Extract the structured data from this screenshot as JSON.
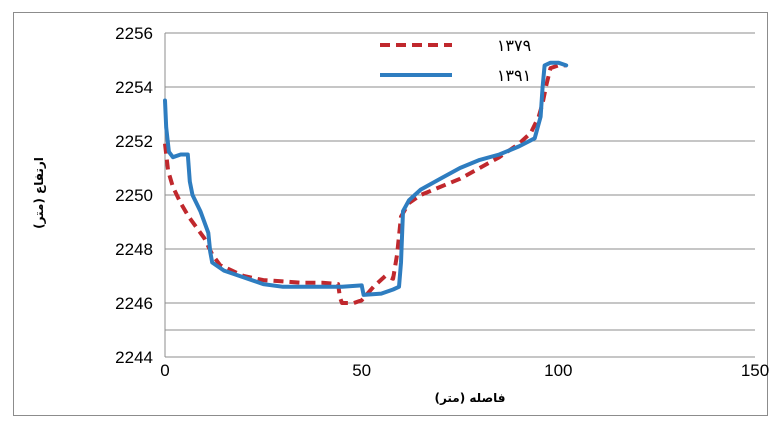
{
  "chart_data": {
    "type": "line",
    "title": "",
    "xlabel": "فاصله (متر)",
    "ylabel": "ارتفاع (متر)",
    "xlim": [
      0,
      150
    ],
    "ylim": [
      2244,
      2256
    ],
    "x_ticks": [
      0,
      50,
      100,
      150
    ],
    "y_ticks": [
      2244,
      2246,
      2248,
      2250,
      2252,
      2254,
      2256
    ],
    "grid": "horizontal",
    "legend_position": "top-center",
    "series": [
      {
        "name": "۱۳۷۹",
        "color": "#c0282d",
        "dash": "dashed",
        "points": [
          [
            0,
            2251.9
          ],
          [
            0.8,
            2250.9
          ],
          [
            2,
            2250.3
          ],
          [
            4,
            2249.7
          ],
          [
            6,
            2249.2
          ],
          [
            8,
            2248.8
          ],
          [
            10,
            2248.4
          ],
          [
            12,
            2247.8
          ],
          [
            14,
            2247.4
          ],
          [
            17,
            2247.2
          ],
          [
            20,
            2247.0
          ],
          [
            25,
            2246.85
          ],
          [
            30,
            2246.8
          ],
          [
            35,
            2246.75
          ],
          [
            40,
            2246.75
          ],
          [
            44,
            2246.7
          ],
          [
            44.5,
            2246.2
          ],
          [
            45,
            2246.0
          ],
          [
            48,
            2246.0
          ],
          [
            50,
            2246.1
          ],
          [
            53,
            2246.6
          ],
          [
            56,
            2247.0
          ],
          [
            58,
            2246.9
          ],
          [
            59,
            2247.8
          ],
          [
            60,
            2249.2
          ],
          [
            62,
            2249.7
          ],
          [
            65,
            2250.0
          ],
          [
            70,
            2250.3
          ],
          [
            75,
            2250.6
          ],
          [
            80,
            2251.0
          ],
          [
            85,
            2251.4
          ],
          [
            90,
            2251.9
          ],
          [
            93,
            2252.3
          ],
          [
            95,
            2252.9
          ],
          [
            96,
            2253.4
          ],
          [
            97,
            2254.1
          ],
          [
            98,
            2254.7
          ],
          [
            100,
            2254.8
          ],
          [
            102,
            2254.8
          ]
        ]
      },
      {
        "name": "۱۳۹۱",
        "color": "#2e7dc0",
        "dash": "solid",
        "points": [
          [
            0,
            2253.5
          ],
          [
            0.3,
            2252.5
          ],
          [
            1,
            2251.6
          ],
          [
            2,
            2251.4
          ],
          [
            4,
            2251.5
          ],
          [
            5.8,
            2251.5
          ],
          [
            6.3,
            2250.5
          ],
          [
            7,
            2250.0
          ],
          [
            9,
            2249.4
          ],
          [
            11,
            2248.6
          ],
          [
            11.5,
            2247.9
          ],
          [
            12,
            2247.5
          ],
          [
            15,
            2247.2
          ],
          [
            20,
            2246.95
          ],
          [
            25,
            2246.7
          ],
          [
            30,
            2246.6
          ],
          [
            35,
            2246.6
          ],
          [
            40,
            2246.6
          ],
          [
            45,
            2246.6
          ],
          [
            50,
            2246.65
          ],
          [
            50.5,
            2246.3
          ],
          [
            55,
            2246.35
          ],
          [
            58,
            2246.5
          ],
          [
            59.5,
            2246.6
          ],
          [
            60,
            2247.5
          ],
          [
            60.5,
            2249.4
          ],
          [
            62,
            2249.8
          ],
          [
            65,
            2250.2
          ],
          [
            70,
            2250.6
          ],
          [
            75,
            2251.0
          ],
          [
            80,
            2251.3
          ],
          [
            85,
            2251.5
          ],
          [
            90,
            2251.8
          ],
          [
            94,
            2252.1
          ],
          [
            95.5,
            2252.9
          ],
          [
            96,
            2254.0
          ],
          [
            96.5,
            2254.8
          ],
          [
            98,
            2254.9
          ],
          [
            100,
            2254.9
          ],
          [
            102,
            2254.8
          ]
        ]
      }
    ]
  }
}
